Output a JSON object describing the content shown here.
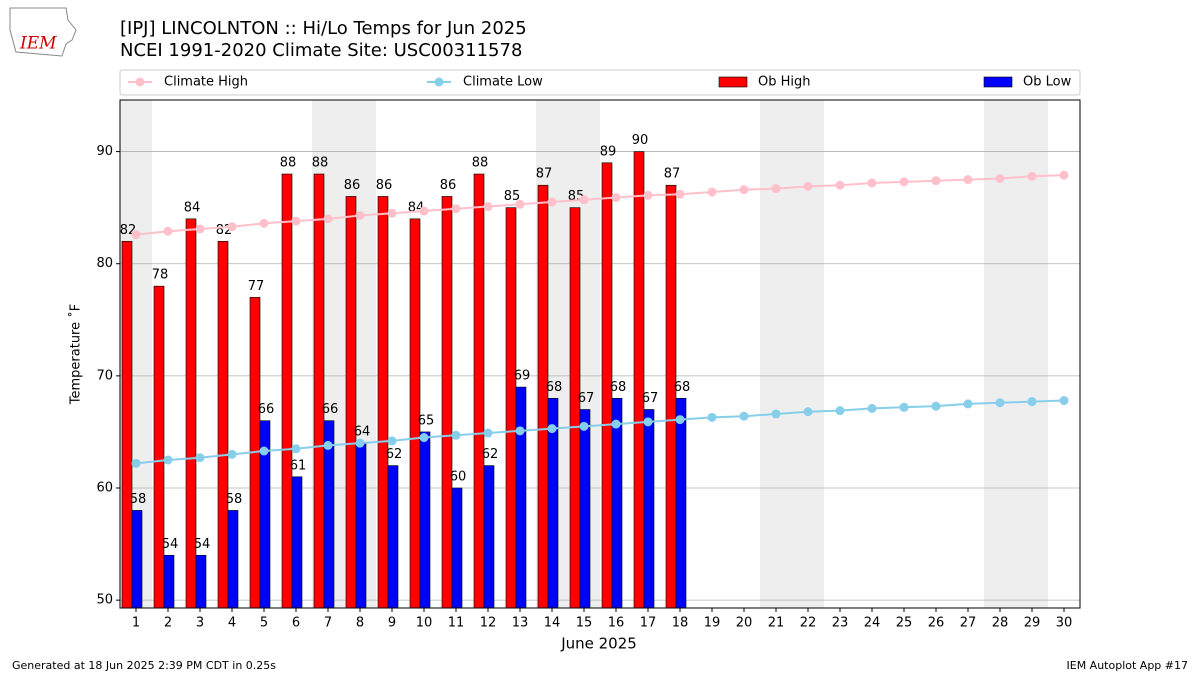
{
  "logo_text": "IEM",
  "footer_left": "Generated at 18 Jun 2025 2:39 PM CDT in 0.25s",
  "footer_right": "IEM Autoplot App #17",
  "chart_data": {
    "type": "bar",
    "title": "[IPJ] LINCOLNTON :: Hi/Lo Temps for Jun 2025",
    "subtitle": "NCEI 1991-2020 Climate Site: USC00311578",
    "x_label": "June 2025",
    "y_label": "Temperature ˚F",
    "categories": [
      "1",
      "2",
      "3",
      "4",
      "5",
      "6",
      "7",
      "8",
      "9",
      "10",
      "11",
      "12",
      "13",
      "14",
      "15",
      "16",
      "17",
      "18",
      "19",
      "20",
      "21",
      "22",
      "23",
      "24",
      "25",
      "26",
      "27",
      "28",
      "29",
      "30"
    ],
    "series": [
      {
        "name": "Climate High",
        "type": "line",
        "color": "#ffc0cb",
        "values": [
          82.6,
          82.9,
          83.1,
          83.3,
          83.6,
          83.8,
          84.0,
          84.3,
          84.5,
          84.7,
          84.9,
          85.1,
          85.3,
          85.5,
          85.7,
          85.9,
          86.1,
          86.2,
          86.4,
          86.6,
          86.7,
          86.9,
          87.0,
          87.2,
          87.3,
          87.4,
          87.5,
          87.6,
          87.8,
          87.9
        ]
      },
      {
        "name": "Climate Low",
        "type": "line",
        "color": "#87ceeb",
        "values": [
          62.2,
          62.5,
          62.7,
          63.0,
          63.3,
          63.5,
          63.8,
          64.0,
          64.2,
          64.5,
          64.7,
          64.9,
          65.1,
          65.3,
          65.5,
          65.7,
          65.9,
          66.1,
          66.3,
          66.4,
          66.6,
          66.8,
          66.9,
          67.1,
          67.2,
          67.3,
          67.5,
          67.6,
          67.7,
          67.8
        ]
      },
      {
        "name": "Ob High",
        "type": "bar",
        "color": "#ff0000",
        "values": [
          82,
          78,
          84,
          82,
          77,
          88,
          88,
          86,
          86,
          84,
          86,
          88,
          85,
          87,
          85,
          89,
          90,
          87,
          null,
          null,
          null,
          null,
          null,
          null,
          null,
          null,
          null,
          null,
          null,
          null
        ]
      },
      {
        "name": "Ob Low",
        "type": "bar",
        "color": "#0000ff",
        "values": [
          58,
          54,
          54,
          58,
          66,
          61,
          66,
          64,
          62,
          65,
          60,
          62,
          69,
          68,
          67,
          68,
          67,
          68,
          null,
          null,
          null,
          null,
          null,
          null,
          null,
          null,
          null,
          null,
          null,
          null
        ]
      }
    ],
    "ylim": [
      49.3,
      94.6
    ],
    "yticks": [
      50,
      60,
      70,
      80,
      90
    ],
    "grid": true
  }
}
